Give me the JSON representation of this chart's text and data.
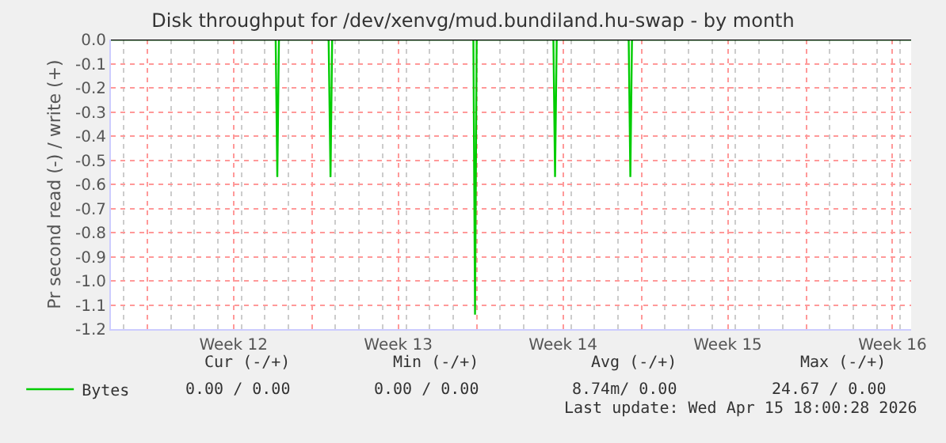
{
  "chart_data": {
    "type": "line",
    "title": "Disk throughput for /dev/xenvg/mud.bundiland.hu-swap - by month",
    "ylabel": "Pr second read (-) / write (+)",
    "series": [
      {
        "name": "Bytes",
        "color": "#00cc00",
        "x": [
          "2026-03-14T11:00",
          "2026-03-21T11:00",
          "2026-03-21T12:40",
          "2026-03-21T14:20",
          "2026-03-23T17:00",
          "2026-03-23T18:55",
          "2026-03-23T20:36",
          "2026-03-29T20:36",
          "2026-03-29T22:17",
          "2026-03-29T23:58",
          "2026-04-02T06:12",
          "2026-04-02T07:53",
          "2026-04-02T09:34",
          "2026-04-05T11:00",
          "2026-04-05T12:40",
          "2026-04-05T14:20",
          "2026-04-17T11:00"
        ],
        "values": [
          0,
          0,
          -0.57,
          0,
          0,
          -0.57,
          0,
          0,
          -1.14,
          0,
          0,
          -0.57,
          0,
          0,
          -0.57,
          0,
          0
        ]
      }
    ],
    "xlim": [
      "2026-03-14T11:00",
      "2026-04-17T11:00"
    ],
    "xticks": [
      {
        "value": "2026-03-16",
        "label": null
      },
      {
        "value": "2026-03-19T16:00",
        "label": "Week 12"
      },
      {
        "value": "2026-03-23",
        "label": null
      },
      {
        "value": "2026-03-26T16:00",
        "label": "Week 13"
      },
      {
        "value": "2026-03-30",
        "label": null
      },
      {
        "value": "2026-04-02T16:00",
        "label": "Week 14"
      },
      {
        "value": "2026-04-06",
        "label": null
      },
      {
        "value": "2026-04-09T16:00",
        "label": "Week 15"
      },
      {
        "value": "2026-04-13",
        "label": null
      },
      {
        "value": "2026-04-16T16:00",
        "label": "Week 16"
      }
    ],
    "ylim": [
      -1.2,
      0.0
    ],
    "yticks": [
      {
        "value": -1.2,
        "label": "-1.2"
      },
      {
        "value": -1.1,
        "label": "-1.1"
      },
      {
        "value": -1.0,
        "label": "-1.0"
      },
      {
        "value": -0.9,
        "label": "-0.9"
      },
      {
        "value": -0.8,
        "label": "-0.8"
      },
      {
        "value": -0.7,
        "label": "-0.7"
      },
      {
        "value": -0.6,
        "label": "-0.6"
      },
      {
        "value": -0.5,
        "label": "-0.5"
      },
      {
        "value": -0.4,
        "label": "-0.4"
      },
      {
        "value": -0.3,
        "label": "-0.3"
      },
      {
        "value": -0.2,
        "label": "-0.2"
      },
      {
        "value": -0.1,
        "label": "-0.1"
      },
      {
        "value": 0.0,
        "label": "0.0"
      }
    ],
    "ref_lines": [
      {
        "axis": "y",
        "value": 0,
        "label": null,
        "color": "#000000"
      }
    ],
    "grid": true,
    "legend": "bottom",
    "marker": "none",
    "line_style": "solid",
    "annotations": [
      "Cur (-/+)",
      "Min (-/+)",
      "Avg (-/+)",
      "Max (-/+)",
      "0.00 / 0.00",
      "0.00 / 0.00",
      "8.74m/ 0.00",
      "24.67 / 0.00",
      "Last update: Wed Apr 15 18:00:28 2026"
    ]
  }
}
